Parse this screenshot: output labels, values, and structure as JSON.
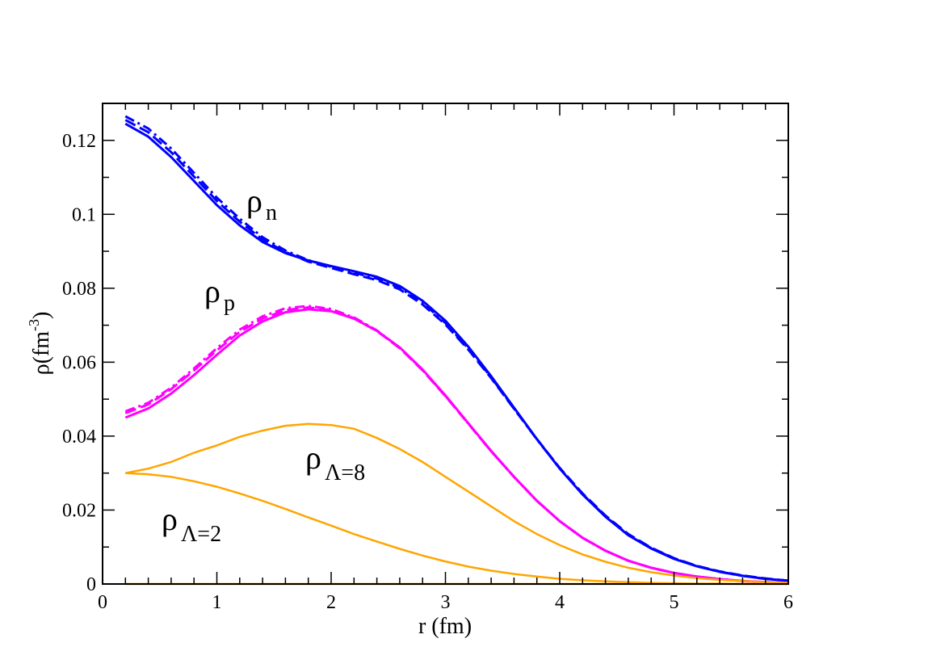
{
  "chart_data": {
    "type": "line",
    "xlabel": "r (fm)",
    "ylabel": {
      "base": "ρ(fm",
      "sup": "-3",
      "close": ")"
    },
    "xlim": [
      0,
      6
    ],
    "ylim": [
      0,
      0.13
    ],
    "xticks": [
      "0",
      "1",
      "2",
      "3",
      "4",
      "5",
      "6"
    ],
    "yticks": [
      "0",
      "0.02",
      "0.04",
      "0.06",
      "0.08",
      "0.1",
      "0.12"
    ],
    "grid": false,
    "x": [
      0.2,
      0.4,
      0.6,
      0.8,
      1.0,
      1.2,
      1.4,
      1.6,
      1.8,
      2.0,
      2.2,
      2.4,
      2.6,
      2.8,
      3.0,
      3.2,
      3.4,
      3.6,
      3.8,
      4.0,
      4.2,
      4.4,
      4.6,
      4.8,
      5.0,
      5.2,
      5.4,
      5.6,
      5.8,
      6.0
    ],
    "series": [
      {
        "color": "#0000ff",
        "style": "solid",
        "values": [
          0.1245,
          0.121,
          0.1155,
          0.109,
          0.1025,
          0.097,
          0.0925,
          0.0895,
          0.0875,
          0.086,
          0.0846,
          0.0831,
          0.0806,
          0.0766,
          0.0712,
          0.0642,
          0.0562,
          0.0477,
          0.0392,
          0.0312,
          0.0242,
          0.0182,
          0.0132,
          0.0096,
          0.0068,
          0.0048,
          0.0033,
          0.0022,
          0.0014,
          0.0009
        ]
      },
      {
        "color": "#0000ff",
        "style": "dashed",
        "values": [
          0.1255,
          0.1222,
          0.1168,
          0.1102,
          0.1036,
          0.098,
          0.0932,
          0.0898,
          0.0872,
          0.0855,
          0.0838,
          0.0822,
          0.0797,
          0.0756,
          0.0702,
          0.0634,
          0.0557,
          0.0474,
          0.0392,
          0.0314,
          0.0245,
          0.0185,
          0.0135,
          0.0098,
          0.007,
          0.0049,
          0.0034,
          0.0023,
          0.0015,
          0.0009
        ]
      },
      {
        "color": "#0000ff",
        "style": "dashdot",
        "values": [
          0.1265,
          0.1232,
          0.1178,
          0.1112,
          0.1045,
          0.0988,
          0.0938,
          0.0902,
          0.0876,
          0.0858,
          0.0842,
          0.0826,
          0.0801,
          0.0761,
          0.0706,
          0.0637,
          0.0559,
          0.0475,
          0.0391,
          0.0313,
          0.0243,
          0.0183,
          0.0133,
          0.0097,
          0.0069,
          0.0048,
          0.0033,
          0.0022,
          0.0014,
          0.0009
        ]
      },
      {
        "color": "#ff00ff",
        "style": "solid",
        "values": [
          0.045,
          0.0475,
          0.0515,
          0.0565,
          0.062,
          0.0672,
          0.071,
          0.0735,
          0.0743,
          0.0738,
          0.0718,
          0.0685,
          0.064,
          0.058,
          0.051,
          0.0435,
          0.036,
          0.029,
          0.0225,
          0.017,
          0.0125,
          0.009,
          0.0063,
          0.0044,
          0.003,
          0.002,
          0.0013,
          0.0008,
          0.0005,
          0.0003
        ]
      },
      {
        "color": "#ff00ff",
        "style": "dashed",
        "values": [
          0.0462,
          0.0486,
          0.0527,
          0.0578,
          0.0632,
          0.0682,
          0.0718,
          0.0741,
          0.0748,
          0.0741,
          0.0719,
          0.0684,
          0.0638,
          0.0578,
          0.0508,
          0.0434,
          0.0359,
          0.029,
          0.0225,
          0.017,
          0.0125,
          0.009,
          0.0063,
          0.0044,
          0.003,
          0.002,
          0.0013,
          0.0008,
          0.0005,
          0.0003
        ]
      },
      {
        "color": "#ff00ff",
        "style": "dashdot",
        "values": [
          0.0467,
          0.049,
          0.0531,
          0.0583,
          0.0638,
          0.0688,
          0.0724,
          0.0746,
          0.0752,
          0.0744,
          0.0721,
          0.0686,
          0.0639,
          0.0579,
          0.0509,
          0.0434,
          0.0359,
          0.029,
          0.0225,
          0.017,
          0.0125,
          0.009,
          0.0063,
          0.0044,
          0.003,
          0.002,
          0.0013,
          0.0008,
          0.0005,
          0.0003
        ]
      },
      {
        "color": "#ffa500",
        "style": "solid",
        "values": [
          0.03,
          0.0312,
          0.033,
          0.0355,
          0.0375,
          0.0398,
          0.0415,
          0.0428,
          0.0433,
          0.043,
          0.042,
          0.0395,
          0.0365,
          0.033,
          0.029,
          0.025,
          0.021,
          0.017,
          0.0135,
          0.0105,
          0.008,
          0.006,
          0.0044,
          0.0032,
          0.0023,
          0.0016,
          0.0011,
          0.0008,
          0.0005,
          0.0003
        ]
      },
      {
        "color": "#ffa500",
        "style": "solid",
        "values": [
          0.03,
          0.0297,
          0.029,
          0.0278,
          0.0263,
          0.0245,
          0.0225,
          0.0203,
          0.018,
          0.0158,
          0.0135,
          0.0115,
          0.0095,
          0.0077,
          0.0061,
          0.0047,
          0.0036,
          0.0027,
          0.002,
          0.0014,
          0.001,
          0.0007,
          0.0005,
          0.0003,
          0.0002,
          0.0001,
          0.0001,
          0,
          0,
          0
        ]
      },
      {
        "color": "#ffa500",
        "style": "solid",
        "values": [
          0,
          0,
          0,
          0,
          0,
          0,
          0,
          0,
          0,
          0,
          0,
          0,
          0,
          0,
          0,
          0,
          0,
          0,
          0,
          0,
          0,
          0,
          0,
          0,
          0,
          0,
          0,
          0,
          0,
          0
        ]
      }
    ],
    "annotations": [
      {
        "base": "ρ",
        "sub": "n"
      },
      {
        "base": "ρ",
        "sub": "p"
      },
      {
        "base": "ρ",
        "sub": "Λ=8"
      },
      {
        "base": "ρ",
        "sub": "Λ=2"
      }
    ]
  }
}
